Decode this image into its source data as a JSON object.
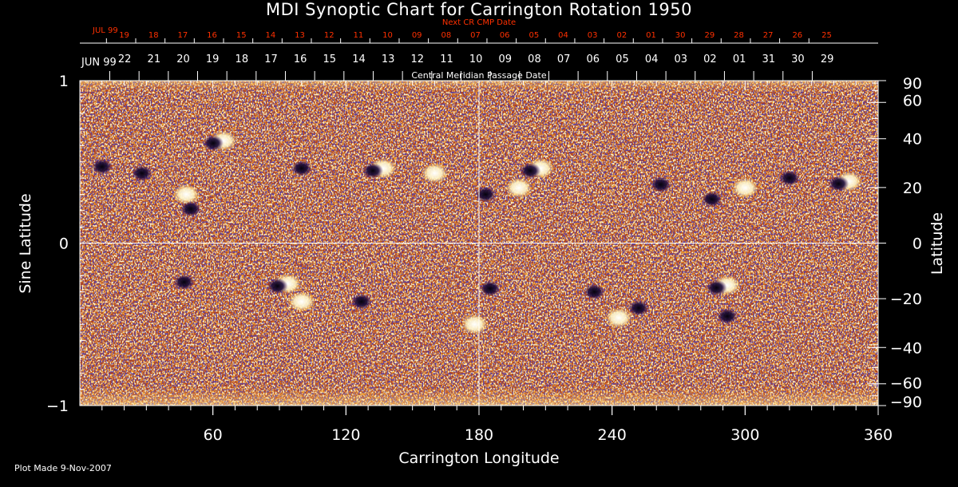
{
  "colors": {
    "background": "#000000",
    "axis": "#ffffff",
    "next_cr_text": "#ff3000"
  },
  "footer": {
    "plot_made": "Plot Made  9-Nov-2007"
  },
  "chart_data": {
    "type": "heatmap",
    "title": "MDI Synoptic Chart for Carrington Rotation 1950",
    "xlabel": "Carrington Longitude",
    "ylabel_left": "Sine Latitude",
    "ylabel_right": "Latitude",
    "xlim": [
      0,
      360
    ],
    "ylim": [
      -1,
      1
    ],
    "x_ticks": [
      60,
      120,
      180,
      240,
      300,
      360
    ],
    "y_left_ticks": [
      {
        "value": 1,
        "label": "1"
      },
      {
        "value": 0,
        "label": "0"
      },
      {
        "value": -1,
        "label": "−1"
      }
    ],
    "y_right_ticks": [
      {
        "deg": 90,
        "label": "90"
      },
      {
        "deg": 60,
        "label": "60"
      },
      {
        "deg": 40,
        "label": "40"
      },
      {
        "deg": 20,
        "label": "20"
      },
      {
        "deg": 0,
        "label": "0"
      },
      {
        "deg": -20,
        "label": "−20"
      },
      {
        "deg": -40,
        "label": "−40"
      },
      {
        "deg": -60,
        "label": "−60"
      },
      {
        "deg": -90,
        "label": "−90"
      }
    ],
    "central_meridian_label": "Central Meridian Passage Date",
    "central_meridian_month": "JUN 99",
    "central_meridian_dates": [
      "22",
      "21",
      "20",
      "19",
      "18",
      "17",
      "16",
      "15",
      "14",
      "13",
      "12",
      "11",
      "10",
      "09",
      "08",
      "07",
      "06",
      "05",
      "04",
      "03",
      "02",
      "01",
      "31",
      "30",
      "29"
    ],
    "next_cr_label": "Next CR CMP Date",
    "next_cr_month": "JUL 99",
    "next_cr_dates": [
      "19",
      "18",
      "17",
      "16",
      "15",
      "14",
      "13",
      "12",
      "11",
      "10",
      "09",
      "08",
      "07",
      "06",
      "05",
      "04",
      "03",
      "02",
      "01",
      "30",
      "29",
      "28",
      "27",
      "26",
      "25"
    ],
    "reference_lines": {
      "longitude": 180,
      "sine_latitude": 0
    },
    "magnetogram_regions": [
      {
        "lon": 63,
        "sinlat": 0.63,
        "polarity": "mixed"
      },
      {
        "lon": 10,
        "sinlat": 0.47,
        "polarity": "negative"
      },
      {
        "lon": 28,
        "sinlat": 0.43,
        "polarity": "negative"
      },
      {
        "lon": 48,
        "sinlat": 0.3,
        "polarity": "positive"
      },
      {
        "lon": 50,
        "sinlat": 0.21,
        "polarity": "negative"
      },
      {
        "lon": 100,
        "sinlat": 0.46,
        "polarity": "negative"
      },
      {
        "lon": 135,
        "sinlat": 0.46,
        "polarity": "mixed"
      },
      {
        "lon": 160,
        "sinlat": 0.43,
        "polarity": "positive"
      },
      {
        "lon": 198,
        "sinlat": 0.34,
        "polarity": "positive"
      },
      {
        "lon": 206,
        "sinlat": 0.46,
        "polarity": "mixed"
      },
      {
        "lon": 183,
        "sinlat": 0.3,
        "polarity": "negative"
      },
      {
        "lon": 262,
        "sinlat": 0.36,
        "polarity": "negative"
      },
      {
        "lon": 285,
        "sinlat": 0.27,
        "polarity": "negative"
      },
      {
        "lon": 300,
        "sinlat": 0.34,
        "polarity": "positive"
      },
      {
        "lon": 320,
        "sinlat": 0.4,
        "polarity": "negative"
      },
      {
        "lon": 345,
        "sinlat": 0.38,
        "polarity": "mixed"
      },
      {
        "lon": 47,
        "sinlat": -0.24,
        "polarity": "negative"
      },
      {
        "lon": 92,
        "sinlat": -0.25,
        "polarity": "mixed"
      },
      {
        "lon": 100,
        "sinlat": -0.36,
        "polarity": "positive"
      },
      {
        "lon": 127,
        "sinlat": -0.36,
        "polarity": "negative"
      },
      {
        "lon": 178,
        "sinlat": -0.5,
        "polarity": "positive"
      },
      {
        "lon": 185,
        "sinlat": -0.28,
        "polarity": "negative"
      },
      {
        "lon": 232,
        "sinlat": -0.3,
        "polarity": "negative"
      },
      {
        "lon": 243,
        "sinlat": -0.46,
        "polarity": "positive"
      },
      {
        "lon": 252,
        "sinlat": -0.4,
        "polarity": "negative"
      },
      {
        "lon": 290,
        "sinlat": -0.26,
        "polarity": "mixed"
      },
      {
        "lon": 292,
        "sinlat": -0.45,
        "polarity": "negative"
      }
    ]
  }
}
